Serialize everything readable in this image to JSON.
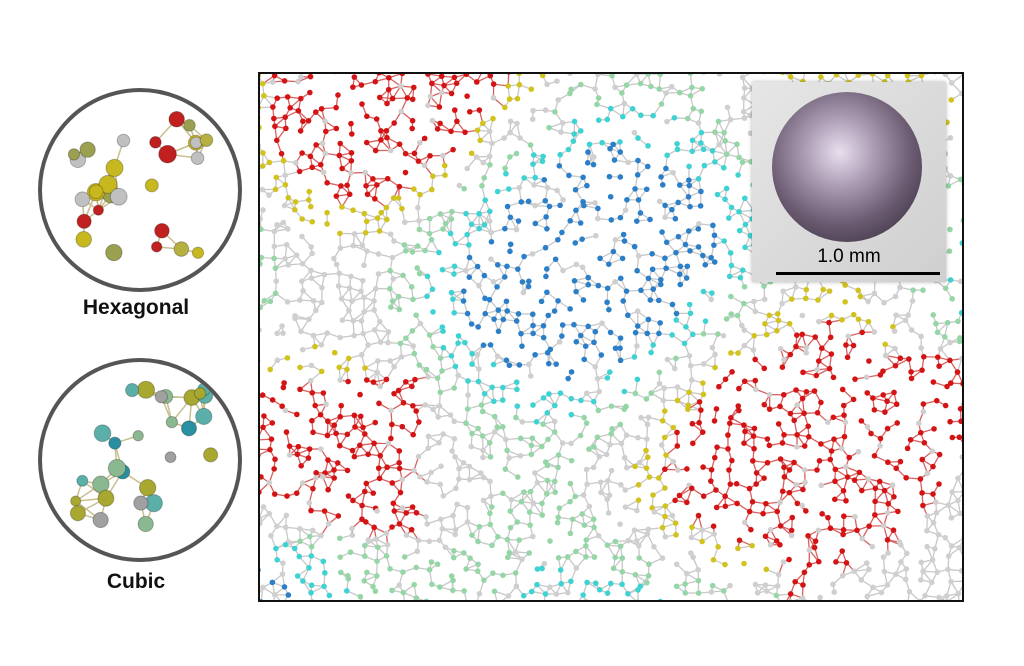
{
  "structures": [
    {
      "label": "Hexagonal",
      "ball_colors": [
        "#b5b040",
        "#c8b820",
        "#9aa050",
        "#c0c0c0",
        "#c02020"
      ]
    },
    {
      "label": "Cubic",
      "ball_colors": [
        "#2a8fa0",
        "#5ab0a8",
        "#8ab890",
        "#a8a830",
        "#a0a0a0"
      ]
    }
  ],
  "simulation": {
    "atom_colors": [
      "#d41414",
      "#cfcfcf",
      "#3ed2d2",
      "#2a7fc8",
      "#d2c21e",
      "#95d6a6"
    ]
  },
  "inset": {
    "scale_label": "1.0 mm"
  }
}
